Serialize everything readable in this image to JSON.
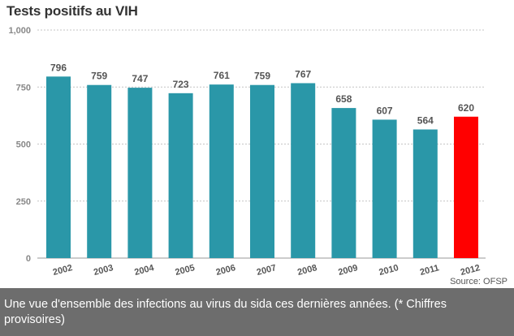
{
  "chart_data": {
    "type": "bar",
    "title": "Tests positifs au VIH",
    "categories": [
      "2002",
      "2003",
      "2004",
      "2005",
      "2006",
      "2007",
      "2008",
      "2009",
      "2010",
      "2011",
      "2012"
    ],
    "values": [
      796,
      759,
      747,
      723,
      761,
      759,
      767,
      658,
      607,
      564,
      620
    ],
    "ylim": [
      0,
      1000
    ],
    "yticks": [
      0,
      250,
      500,
      750,
      1000
    ],
    "ytick_labels": [
      "0",
      "250",
      "500",
      "750",
      "1,000"
    ],
    "xlabel": "",
    "ylabel": "",
    "grid": true,
    "colors": {
      "bar": "#2a97a8",
      "highlight": "#ff0000",
      "highlight_index": 10
    }
  },
  "source": "Source: OFSP",
  "caption": "Une vue d'ensemble des infections au virus du sida ces dernières années. (* Chiffres provisoires)"
}
